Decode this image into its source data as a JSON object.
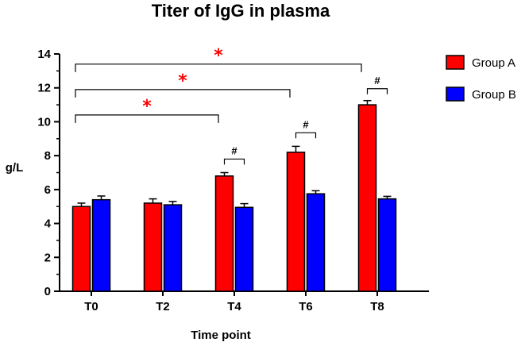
{
  "chart_data": {
    "type": "bar",
    "title": "Titer of IgG in plasma",
    "xlabel": "Time point",
    "ylabel": "g/L",
    "ylim": [
      0,
      14
    ],
    "yticks": [
      0,
      2,
      4,
      6,
      8,
      10,
      12,
      14
    ],
    "categories": [
      "T0",
      "T2",
      "T4",
      "T6",
      "T8"
    ],
    "series": [
      {
        "name": "Group A",
        "color": "#ff0000",
        "values": [
          5.0,
          5.2,
          6.8,
          8.2,
          11.0
        ],
        "errors": [
          0.2,
          0.25,
          0.2,
          0.35,
          0.25
        ]
      },
      {
        "name": "Group B",
        "color": "#0000ff",
        "values": [
          5.4,
          5.1,
          4.95,
          5.75,
          5.45
        ],
        "errors": [
          0.22,
          0.2,
          0.22,
          0.18,
          0.15
        ]
      }
    ],
    "legend_position": "top-right",
    "grid": false,
    "annotations": {
      "significance_vs_T0": [
        {
          "from": "T0",
          "to": "T4",
          "label": "*",
          "color": "#ff0000",
          "level": 10.4
        },
        {
          "from": "T0",
          "to": "T6",
          "label": "*",
          "color": "#ff0000",
          "level": 11.9
        },
        {
          "from": "T0",
          "to": "T8",
          "label": "*",
          "color": "#ff0000",
          "level": 13.4
        }
      ],
      "between_groups": [
        {
          "category": "T4",
          "label": "#",
          "level": 7.8
        },
        {
          "category": "T6",
          "label": "#",
          "level": 9.35
        },
        {
          "category": "T8",
          "label": "#",
          "level": 11.95
        }
      ]
    }
  }
}
